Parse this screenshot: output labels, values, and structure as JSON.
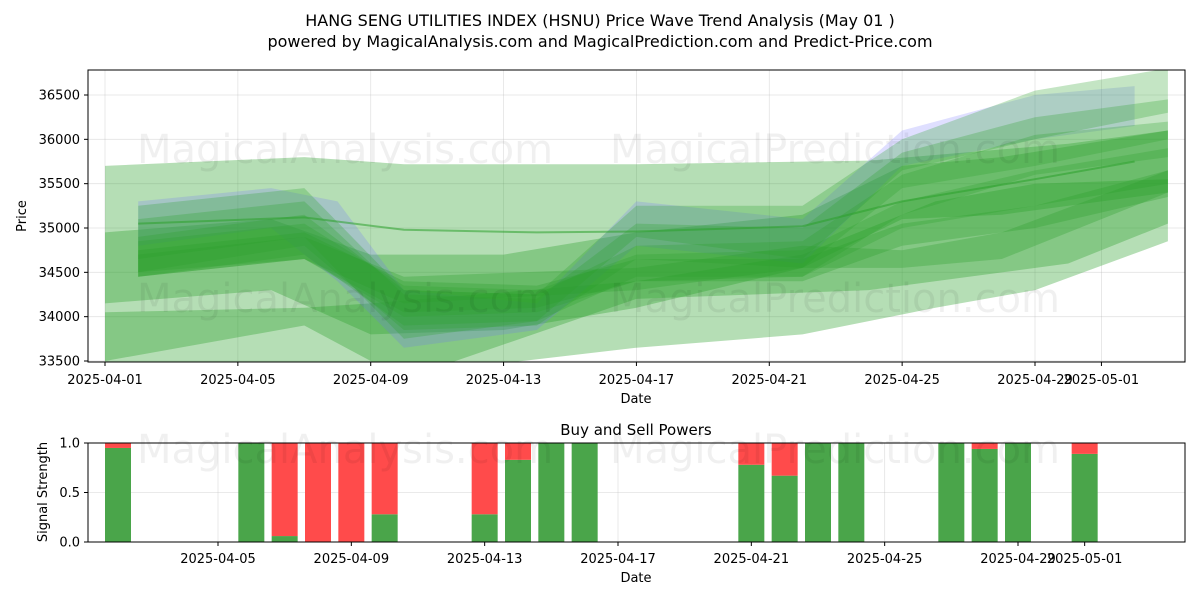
{
  "title_line1": "HANG SENG UTILITIES INDEX (HSNU) Price Wave Trend Analysis (May 01 )",
  "title_line2": "powered by MagicalAnalysis.com and MagicalPrediction.com and Predict-Price.com",
  "watermarks": [
    "MagicalAnalysis.com",
    "MagicalPrediction.com"
  ],
  "colors": {
    "green": "#2ca02c",
    "blue": "#6f6fff",
    "buy": "#4aa54a",
    "sell": "#ff4b4b"
  },
  "chart_data": [
    {
      "type": "area",
      "xlabel": "Date",
      "ylabel": "Price",
      "ylim": [
        33500,
        36800
      ],
      "x_ticks": [
        "2025-04-01",
        "2025-04-05",
        "2025-04-09",
        "2025-04-13",
        "2025-04-17",
        "2025-04-21",
        "2025-04-25",
        "2025-04-29",
        "2025-05-01"
      ],
      "y_ticks": [
        33500,
        34000,
        34500,
        35000,
        35500,
        36000,
        36500
      ],
      "grid": true,
      "bands": [
        {
          "color": "green",
          "opacity": 0.35,
          "x": [
            "2025-04-01",
            "2025-04-07",
            "2025-04-10",
            "2025-04-17",
            "2025-04-24",
            "2025-04-30",
            "2025-05-03"
          ],
          "upper": [
            35700,
            35800,
            35720,
            35720,
            35760,
            35950,
            36100
          ],
          "lower": [
            33500,
            33900,
            33300,
            34200,
            34300,
            34600,
            35050
          ]
        },
        {
          "color": "green",
          "opacity": 0.35,
          "x": [
            "2025-04-01",
            "2025-04-06",
            "2025-04-09",
            "2025-04-13",
            "2025-04-17",
            "2025-04-22",
            "2025-04-25",
            "2025-04-28",
            "2025-05-03"
          ],
          "upper": [
            34950,
            35100,
            34700,
            34700,
            34950,
            35150,
            35700,
            35800,
            36100
          ],
          "lower": [
            34150,
            34300,
            33800,
            33850,
            34100,
            34550,
            35100,
            35150,
            35400
          ]
        },
        {
          "color": "green",
          "opacity": 0.35,
          "x": [
            "2025-04-01",
            "2025-04-07",
            "2025-04-09",
            "2025-04-17",
            "2025-04-22",
            "2025-04-26",
            "2025-04-29",
            "2025-05-03"
          ],
          "upper": [
            34050,
            34100,
            34150,
            34400,
            34700,
            35300,
            35500,
            35550
          ],
          "lower": [
            33300,
            33300,
            33300,
            33650,
            33800,
            34100,
            34300,
            34850
          ]
        },
        {
          "color": "blue",
          "opacity": 0.22,
          "x": [
            "2025-04-02",
            "2025-04-06",
            "2025-04-08",
            "2025-04-10",
            "2025-04-14",
            "2025-04-17",
            "2025-04-22",
            "2025-04-25",
            "2025-04-29",
            "2025-05-02"
          ],
          "upper": [
            35300,
            35450,
            35300,
            34300,
            34150,
            35300,
            35100,
            36100,
            36500,
            36600
          ],
          "lower": [
            34800,
            35000,
            34400,
            33650,
            33850,
            34800,
            34600,
            35700,
            36000,
            36150
          ]
        },
        {
          "color": "green",
          "opacity": 0.28,
          "x": [
            "2025-04-02",
            "2025-04-07",
            "2025-04-10",
            "2025-04-14",
            "2025-04-17",
            "2025-04-22",
            "2025-04-25",
            "2025-04-29",
            "2025-05-03"
          ],
          "upper": [
            35250,
            35450,
            34300,
            34250,
            35250,
            35250,
            36000,
            36550,
            36800
          ],
          "lower": [
            34650,
            34900,
            33750,
            33950,
            34900,
            34650,
            35650,
            36000,
            36300
          ]
        },
        {
          "color": "green",
          "opacity": 0.28,
          "x": [
            "2025-04-02",
            "2025-04-07",
            "2025-04-10",
            "2025-04-14",
            "2025-04-17",
            "2025-04-22",
            "2025-04-25",
            "2025-04-29",
            "2025-05-03"
          ],
          "upper": [
            35100,
            35300,
            34250,
            34200,
            35050,
            35000,
            35850,
            36250,
            36450
          ],
          "lower": [
            34500,
            34800,
            33850,
            33900,
            34650,
            34550,
            35450,
            35700,
            36000
          ]
        },
        {
          "color": "green",
          "opacity": 0.28,
          "x": [
            "2025-04-02",
            "2025-04-07",
            "2025-04-10",
            "2025-04-14",
            "2025-04-17",
            "2025-04-22",
            "2025-04-25",
            "2025-04-29",
            "2025-05-03"
          ],
          "upper": [
            34900,
            35150,
            34300,
            34250,
            34800,
            34850,
            35600,
            36050,
            36200
          ],
          "lower": [
            34450,
            34700,
            33900,
            33950,
            34450,
            34450,
            35150,
            35600,
            35800
          ]
        },
        {
          "color": "green",
          "opacity": 0.28,
          "x": [
            "2025-04-02",
            "2025-04-07",
            "2025-04-10",
            "2025-04-14",
            "2025-04-17",
            "2025-04-22",
            "2025-04-25",
            "2025-04-29",
            "2025-05-03"
          ],
          "upper": [
            34850,
            35050,
            34350,
            34300,
            34700,
            34750,
            35300,
            35650,
            35900
          ],
          "lower": [
            34500,
            34650,
            34000,
            34050,
            34400,
            34450,
            35000,
            35250,
            35500
          ]
        },
        {
          "color": "green",
          "opacity": 0.3,
          "x": [
            "2025-04-02",
            "2025-04-07",
            "2025-04-10",
            "2025-04-14",
            "2025-04-17",
            "2025-04-22",
            "2025-04-25",
            "2025-04-29",
            "2025-05-03"
          ],
          "upper": [
            34750,
            34950,
            34400,
            34350,
            34650,
            34650,
            35050,
            35250,
            35650
          ],
          "lower": [
            34450,
            34650,
            34050,
            34100,
            34400,
            34400,
            34800,
            35000,
            35350
          ]
        },
        {
          "color": "green",
          "opacity": 0.3,
          "x": [
            "2025-04-02",
            "2025-04-07",
            "2025-04-10",
            "2025-04-17",
            "2025-04-22",
            "2025-04-25",
            "2025-04-28",
            "2025-05-03"
          ],
          "upper": [
            34700,
            34900,
            34450,
            34550,
            34800,
            34750,
            34950,
            35650
          ],
          "lower": [
            34450,
            34650,
            34150,
            34300,
            34550,
            34550,
            34650,
            35400
          ]
        }
      ],
      "lines": [
        {
          "color": "green",
          "opacity": 0.55,
          "x": [
            "2025-04-02",
            "2025-04-07",
            "2025-04-10",
            "2025-04-14",
            "2025-04-17",
            "2025-04-22",
            "2025-04-25",
            "2025-04-29",
            "2025-05-02"
          ],
          "y": [
            35050,
            35120,
            34980,
            34950,
            34960,
            35020,
            35300,
            35550,
            35750
          ]
        }
      ]
    },
    {
      "type": "bar",
      "title": "Buy and Sell Powers",
      "xlabel": "Date",
      "ylabel": "Signal Strength",
      "ylim": [
        0,
        1
      ],
      "x_ticks": [
        "2025-04-05",
        "2025-04-09",
        "2025-04-13",
        "2025-04-17",
        "2025-04-21",
        "2025-04-25",
        "2025-04-29",
        "2025-05-01"
      ],
      "y_ticks": [
        "0.0",
        "0.5",
        "1.0"
      ],
      "grid": true,
      "series": [
        {
          "name": "Buy",
          "color": "buy"
        },
        {
          "name": "Sell",
          "color": "sell"
        }
      ],
      "bars": [
        {
          "date": "2025-04-02",
          "buy": 0.95
        },
        {
          "date": "2025-04-06",
          "buy": 1.0
        },
        {
          "date": "2025-04-07",
          "buy": 0.06
        },
        {
          "date": "2025-04-08",
          "buy": 0.0
        },
        {
          "date": "2025-04-09",
          "buy": 0.0
        },
        {
          "date": "2025-04-10",
          "buy": 0.28
        },
        {
          "date": "2025-04-13",
          "buy": 0.28
        },
        {
          "date": "2025-04-14",
          "buy": 0.83
        },
        {
          "date": "2025-04-15",
          "buy": 1.0
        },
        {
          "date": "2025-04-16",
          "buy": 1.0
        },
        {
          "date": "2025-04-21",
          "buy": 0.78
        },
        {
          "date": "2025-04-22",
          "buy": 0.67
        },
        {
          "date": "2025-04-23",
          "buy": 1.0
        },
        {
          "date": "2025-04-24",
          "buy": 1.0
        },
        {
          "date": "2025-04-27",
          "buy": 1.0
        },
        {
          "date": "2025-04-28",
          "buy": 0.94
        },
        {
          "date": "2025-04-29",
          "buy": 1.0
        },
        {
          "date": "2025-05-01",
          "buy": 0.89
        }
      ]
    }
  ]
}
